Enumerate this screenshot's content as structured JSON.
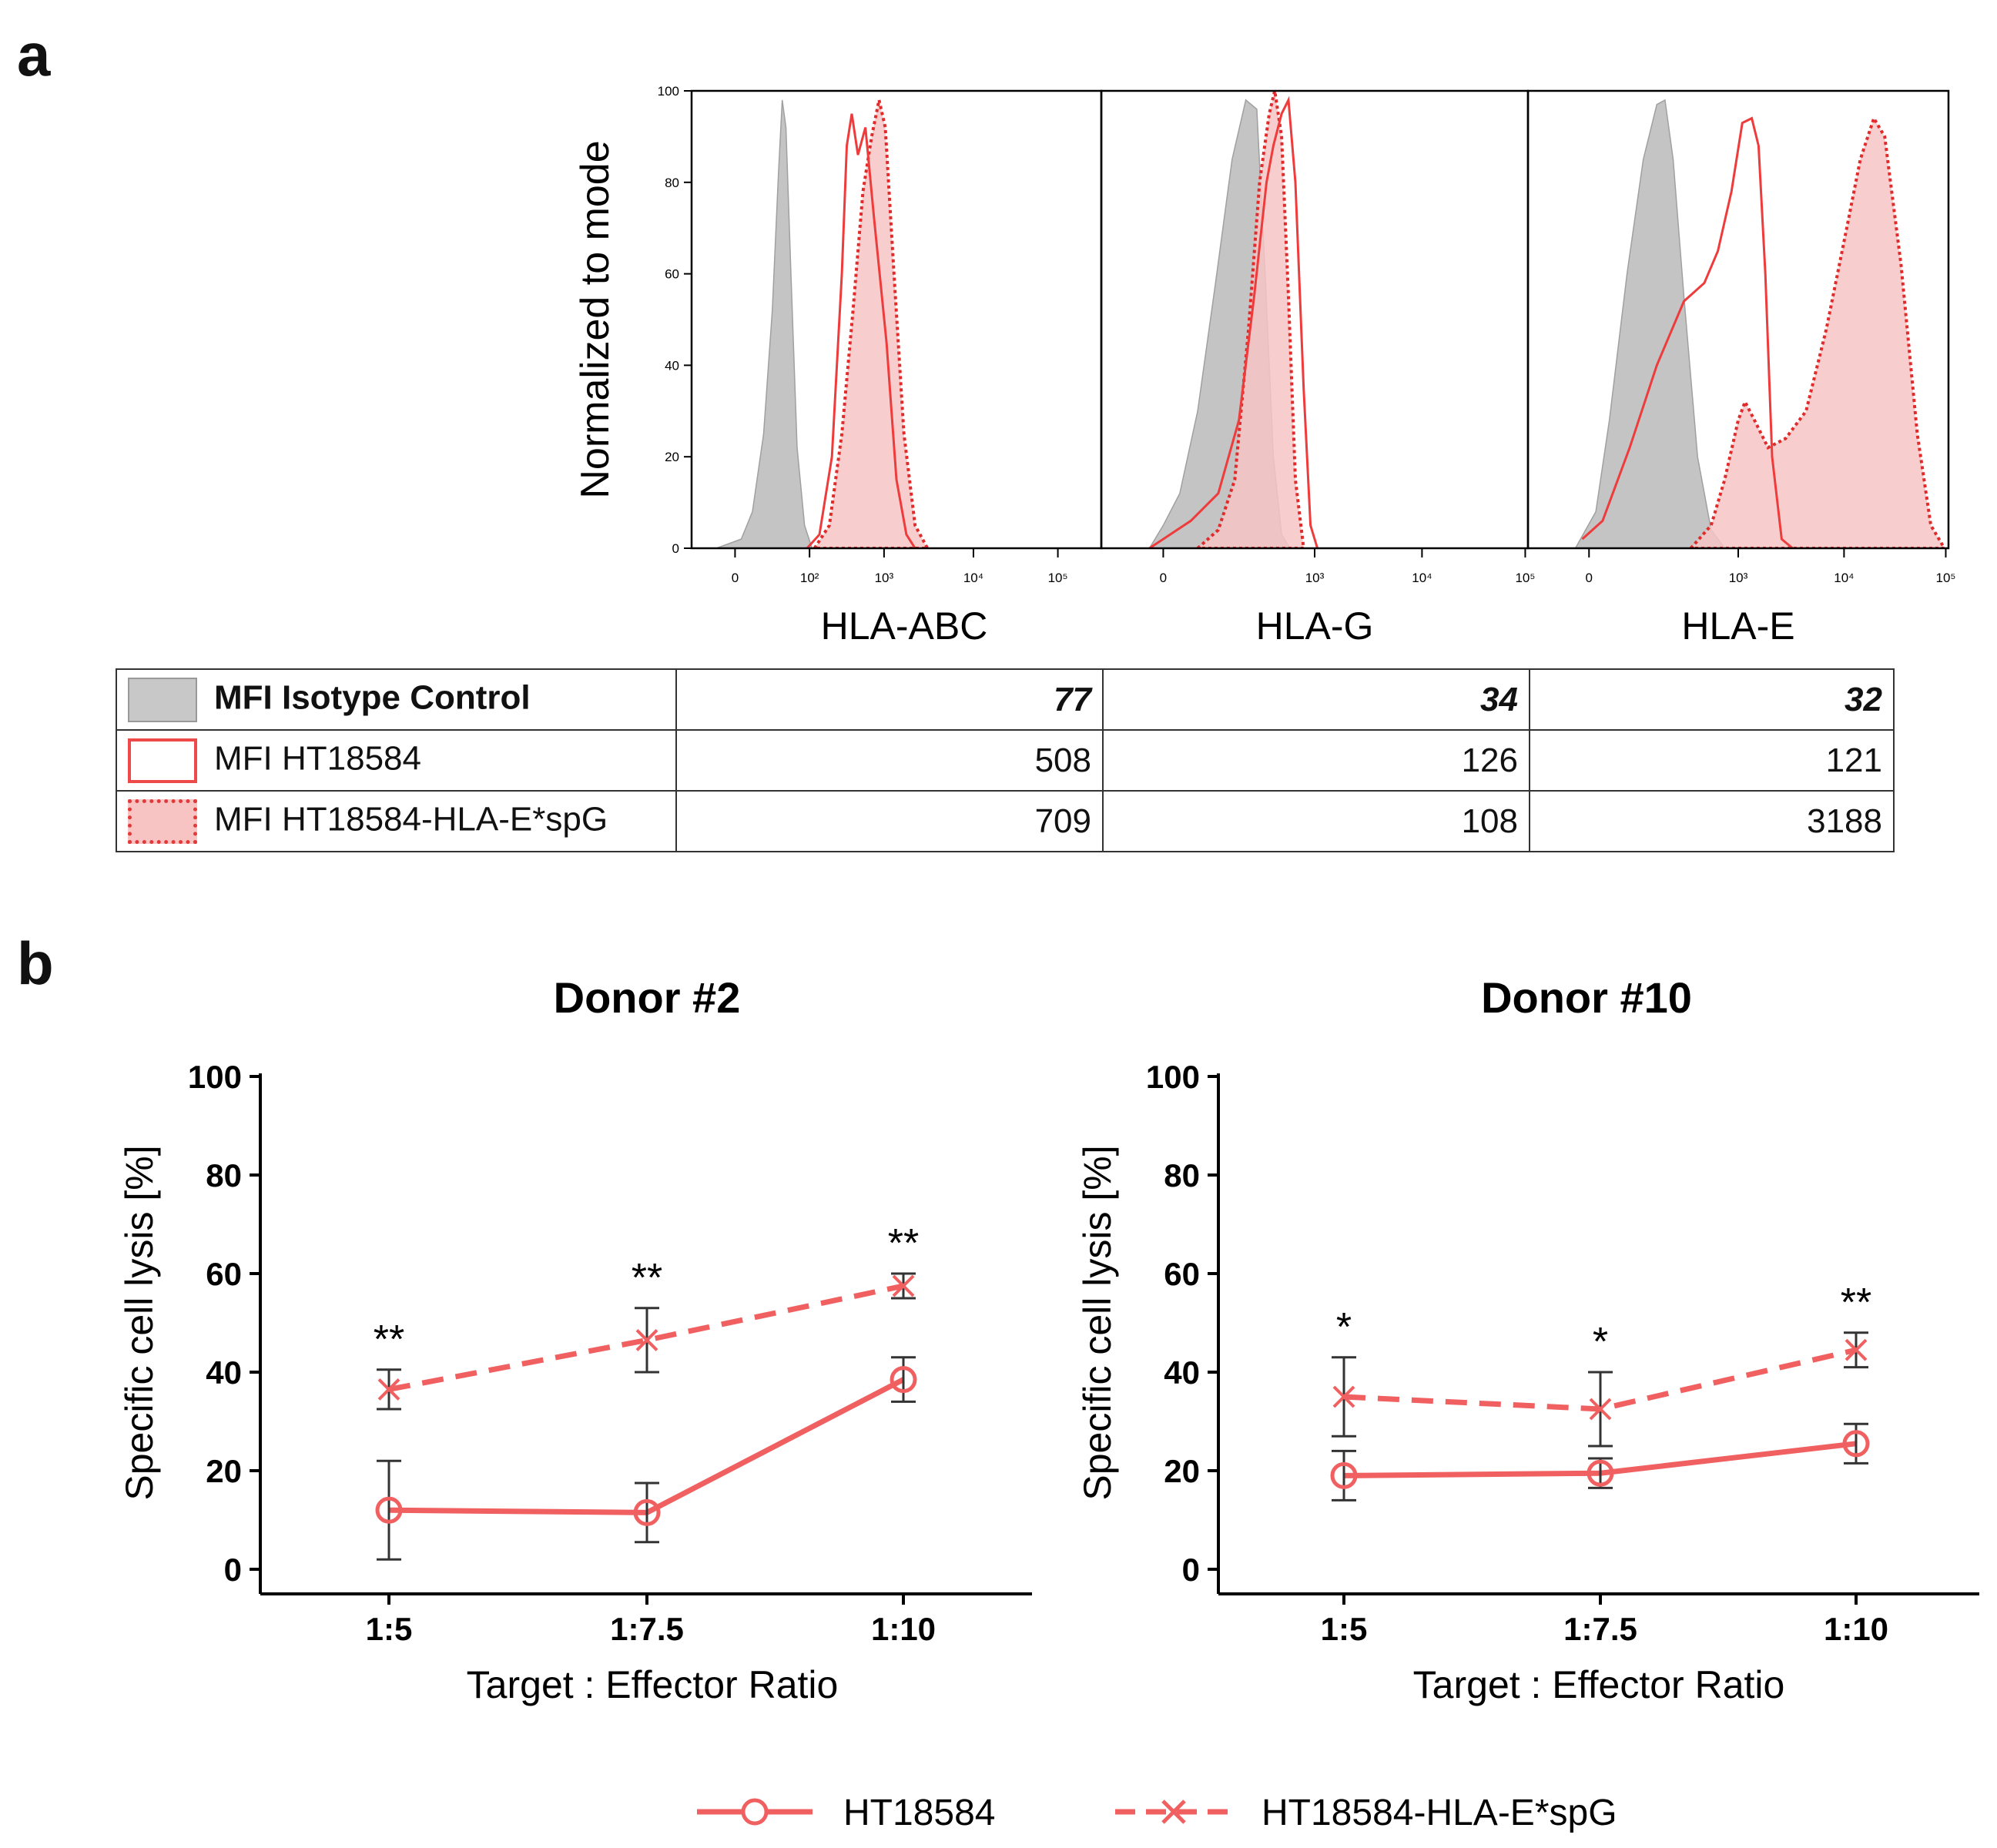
{
  "panel_labels": {
    "a": "a",
    "b": "b"
  },
  "histograms": {
    "ylabel": "Normalized to mode",
    "yticks": [
      "0",
      "20",
      "40",
      "60",
      "80",
      "100"
    ],
    "panels": [
      {
        "name": "HLA-ABC",
        "xlabel": "HLA-ABC",
        "xticks": [
          "0",
          "10²",
          "10³",
          "10⁴",
          "10⁵"
        ],
        "isotype": [
          [
            -0.15,
            0
          ],
          [
            0.05,
            2
          ],
          [
            0.14,
            8
          ],
          [
            0.23,
            25
          ],
          [
            0.3,
            52
          ],
          [
            0.35,
            82
          ],
          [
            0.38,
            98
          ],
          [
            0.41,
            92
          ],
          [
            0.45,
            60
          ],
          [
            0.5,
            22
          ],
          [
            0.56,
            5
          ],
          [
            0.62,
            0
          ]
        ],
        "ht18584": [
          [
            0.58,
            0
          ],
          [
            0.68,
            3
          ],
          [
            0.78,
            20
          ],
          [
            0.86,
            60
          ],
          [
            0.9,
            88
          ],
          [
            0.94,
            95
          ],
          [
            0.99,
            86
          ],
          [
            1.05,
            92
          ],
          [
            1.12,
            72
          ],
          [
            1.22,
            45
          ],
          [
            1.3,
            15
          ],
          [
            1.38,
            3
          ],
          [
            1.45,
            0
          ]
        ],
        "hla_e_spg": [
          [
            0.64,
            0
          ],
          [
            0.76,
            5
          ],
          [
            0.86,
            25
          ],
          [
            0.95,
            52
          ],
          [
            1.03,
            78
          ],
          [
            1.1,
            90
          ],
          [
            1.16,
            98
          ],
          [
            1.21,
            92
          ],
          [
            1.28,
            60
          ],
          [
            1.36,
            25
          ],
          [
            1.45,
            5
          ],
          [
            1.55,
            0
          ]
        ]
      },
      {
        "name": "HLA-G",
        "xlabel": "HLA-G",
        "xticks": [
          "0",
          "10³",
          "10⁴",
          "10⁵"
        ],
        "isotype": [
          [
            -0.1,
            0
          ],
          [
            0,
            5
          ],
          [
            0.12,
            12
          ],
          [
            0.25,
            30
          ],
          [
            0.38,
            58
          ],
          [
            0.5,
            85
          ],
          [
            0.6,
            98
          ],
          [
            0.68,
            96
          ],
          [
            0.74,
            60
          ],
          [
            0.8,
            20
          ],
          [
            0.86,
            3
          ],
          [
            0.92,
            0
          ]
        ],
        "ht18584": [
          [
            -0.1,
            0
          ],
          [
            0,
            2
          ],
          [
            0.2,
            6
          ],
          [
            0.4,
            12
          ],
          [
            0.55,
            28
          ],
          [
            0.66,
            55
          ],
          [
            0.75,
            80
          ],
          [
            0.8,
            88
          ],
          [
            0.86,
            95
          ],
          [
            0.91,
            98
          ],
          [
            0.96,
            80
          ],
          [
            1.02,
            35
          ],
          [
            1.07,
            5
          ],
          [
            1.12,
            0
          ]
        ],
        "hla_e_spg": [
          [
            0.25,
            0
          ],
          [
            0.4,
            4
          ],
          [
            0.52,
            15
          ],
          [
            0.62,
            48
          ],
          [
            0.7,
            80
          ],
          [
            0.77,
            95
          ],
          [
            0.81,
            100
          ],
          [
            0.86,
            90
          ],
          [
            0.91,
            55
          ],
          [
            0.96,
            15
          ],
          [
            1.02,
            0
          ]
        ]
      },
      {
        "name": "HLA-E",
        "xlabel": "HLA-E",
        "xticks": [
          "0",
          "10³",
          "10⁴",
          "10⁵"
        ],
        "isotype": [
          [
            -0.1,
            0
          ],
          [
            0.05,
            8
          ],
          [
            0.15,
            28
          ],
          [
            0.28,
            60
          ],
          [
            0.4,
            85
          ],
          [
            0.5,
            97
          ],
          [
            0.56,
            98
          ],
          [
            0.62,
            85
          ],
          [
            0.7,
            55
          ],
          [
            0.8,
            20
          ],
          [
            0.9,
            4
          ],
          [
            1.0,
            0
          ]
        ],
        "ht18584": [
          [
            -0.05,
            2
          ],
          [
            0.1,
            6
          ],
          [
            0.3,
            22
          ],
          [
            0.5,
            40
          ],
          [
            0.7,
            54
          ],
          [
            0.85,
            58
          ],
          [
            0.95,
            65
          ],
          [
            1.05,
            78
          ],
          [
            1.13,
            93
          ],
          [
            1.2,
            94
          ],
          [
            1.25,
            88
          ],
          [
            1.3,
            60
          ],
          [
            1.35,
            20
          ],
          [
            1.42,
            2
          ],
          [
            1.5,
            0
          ]
        ],
        "hla_e_spg": [
          [
            0.75,
            0
          ],
          [
            0.9,
            5
          ],
          [
            1.0,
            15
          ],
          [
            1.1,
            28
          ],
          [
            1.15,
            32
          ],
          [
            1.22,
            28
          ],
          [
            1.32,
            22
          ],
          [
            1.45,
            24
          ],
          [
            1.6,
            30
          ],
          [
            1.75,
            48
          ],
          [
            1.9,
            70
          ],
          [
            2.0,
            85
          ],
          [
            2.1,
            94
          ],
          [
            2.18,
            90
          ],
          [
            2.3,
            62
          ],
          [
            2.42,
            25
          ],
          [
            2.52,
            5
          ],
          [
            2.62,
            0
          ]
        ]
      }
    ]
  },
  "mfi_table": {
    "rows": [
      {
        "label": "MFI Isotype Control",
        "values": [
          "77",
          "34",
          "32"
        ]
      },
      {
        "label": "MFI HT18584",
        "values": [
          "508",
          "126",
          "121"
        ]
      },
      {
        "label": "MFI HT18584-HLA-E*spG",
        "values": [
          "709",
          "108",
          "3188"
        ]
      }
    ]
  },
  "chart_data": [
    {
      "type": "line",
      "title": "Donor #2",
      "xlabel": "Target : Effector Ratio",
      "ylabel": "Specific cell lysis [%]",
      "categories": [
        "1:5",
        "1:7.5",
        "1:10"
      ],
      "ylim": [
        0,
        100
      ],
      "yticks": [
        "0",
        "20",
        "40",
        "60",
        "80",
        "100"
      ],
      "series": [
        {
          "name": "HT18584",
          "values": [
            12,
            11.5,
            38.5
          ],
          "errors": [
            10,
            6,
            4.5
          ]
        },
        {
          "name": "HT18584-HLA-E*spG",
          "values": [
            36.5,
            46.5,
            57.5
          ],
          "errors": [
            4,
            6.5,
            2.5
          ]
        }
      ],
      "annotations": [
        "**",
        "**",
        "**"
      ]
    },
    {
      "type": "line",
      "title": "Donor #10",
      "xlabel": "Target : Effector Ratio",
      "ylabel": "Specific cell lysis [%]",
      "categories": [
        "1:5",
        "1:7.5",
        "1:10"
      ],
      "ylim": [
        0,
        100
      ],
      "yticks": [
        "0",
        "20",
        "40",
        "60",
        "80",
        "100"
      ],
      "series": [
        {
          "name": "HT18584",
          "values": [
            19,
            19.5,
            25.5
          ],
          "errors": [
            5,
            3,
            4
          ]
        },
        {
          "name": "HT18584-HLA-E*spG",
          "values": [
            35,
            32.5,
            44.5
          ],
          "errors": [
            8,
            7.5,
            3.5
          ]
        }
      ],
      "annotations": [
        "*",
        "*",
        "**"
      ]
    }
  ],
  "legend": {
    "items": [
      "HT18584",
      "HT18584-HLA-E*spG"
    ]
  },
  "colors": {
    "line": "#f16060",
    "isotype_fill": "#c4c4c4",
    "isotype_edge": "#a0a0a0",
    "spg_fill": "#f7c4c4",
    "spg_edge": "#e12b2b",
    "wt_edge": "#ee3c3c",
    "error_bar": "#333333"
  }
}
